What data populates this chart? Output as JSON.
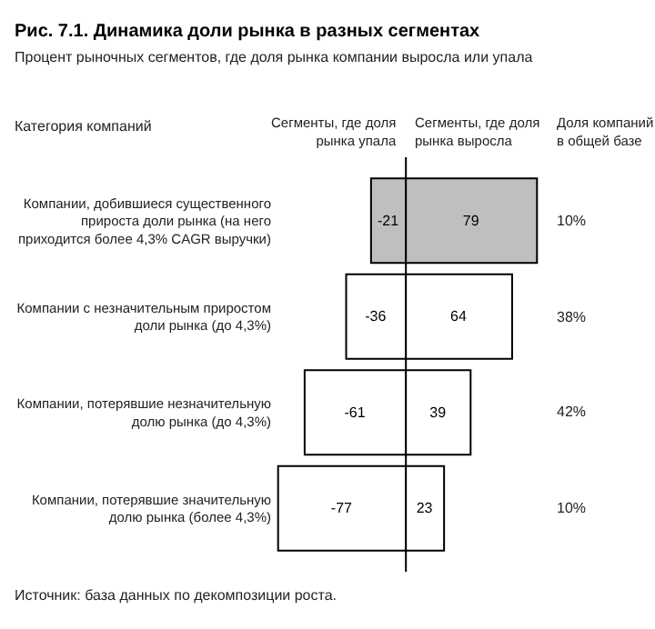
{
  "chart_data": {
    "type": "bar",
    "orientation": "horizontal",
    "stacked": true,
    "title": "Рис. 7.1. Динамика доли рынка в разных сегментах",
    "subtitle": "Процент рыночных сегментов, где доля рынка компании выросла или упала",
    "ylabel": "Категория компаний",
    "categories": [
      "Компании, добившиеся существенного прироста доли рынка (на него приходится более 4,3% CAGR выручки)",
      "Компании с незначительным приростом доли рынка (до 4,3%)",
      "Компании, потерявшие незначительную долю рынка (до 4,3%)",
      "Компании, потерявшие значительную долю рынка (более 4,3%)"
    ],
    "series": [
      {
        "name": "Сегменты, где доля рынка упала",
        "colors": [
          "#bfbfbf",
          "#ffffff",
          "#ffffff",
          "#ffffff"
        ],
        "values": [
          -21,
          -36,
          -61,
          -77
        ]
      },
      {
        "name": "Сегменты, где доля рынка выросла",
        "colors": [
          "#bfbfbf",
          "#ffffff",
          "#ffffff",
          "#ffffff"
        ],
        "values": [
          79,
          64,
          39,
          23
        ]
      }
    ],
    "data_labels": true,
    "ref_lines": [
      {
        "axis": "x",
        "value": 0,
        "color": "#000000"
      }
    ],
    "legend": false,
    "annotations": [
      "Доля компаний в общей базе",
      "10%",
      "38%",
      "42%",
      "10%",
      "Источник: база данных по декомпозиции роста."
    ]
  }
}
